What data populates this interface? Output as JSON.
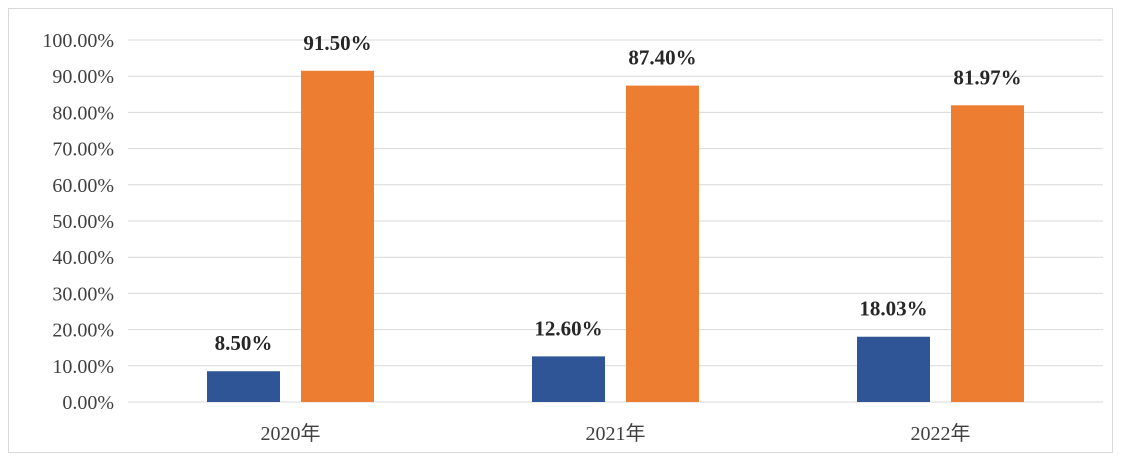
{
  "chart_data": {
    "type": "bar",
    "categories": [
      "2020年",
      "2021年",
      "2022年"
    ],
    "series": [
      {
        "color": "#2f5597",
        "values": [
          8.5,
          12.6,
          18.03
        ]
      },
      {
        "color": "#ed7d31",
        "values": [
          91.5,
          87.4,
          81.97
        ]
      }
    ],
    "data_labels": [
      [
        "8.50%",
        "12.60%",
        "18.03%"
      ],
      [
        "91.50%",
        "87.40%",
        "81.97%"
      ]
    ],
    "y_ticks": [
      "0.00%",
      "10.00%",
      "20.00%",
      "30.00%",
      "40.00%",
      "50.00%",
      "60.00%",
      "70.00%",
      "80.00%",
      "90.00%",
      "100.00%"
    ],
    "ylim": [
      0,
      100
    ],
    "grid": true,
    "legend": "none"
  }
}
